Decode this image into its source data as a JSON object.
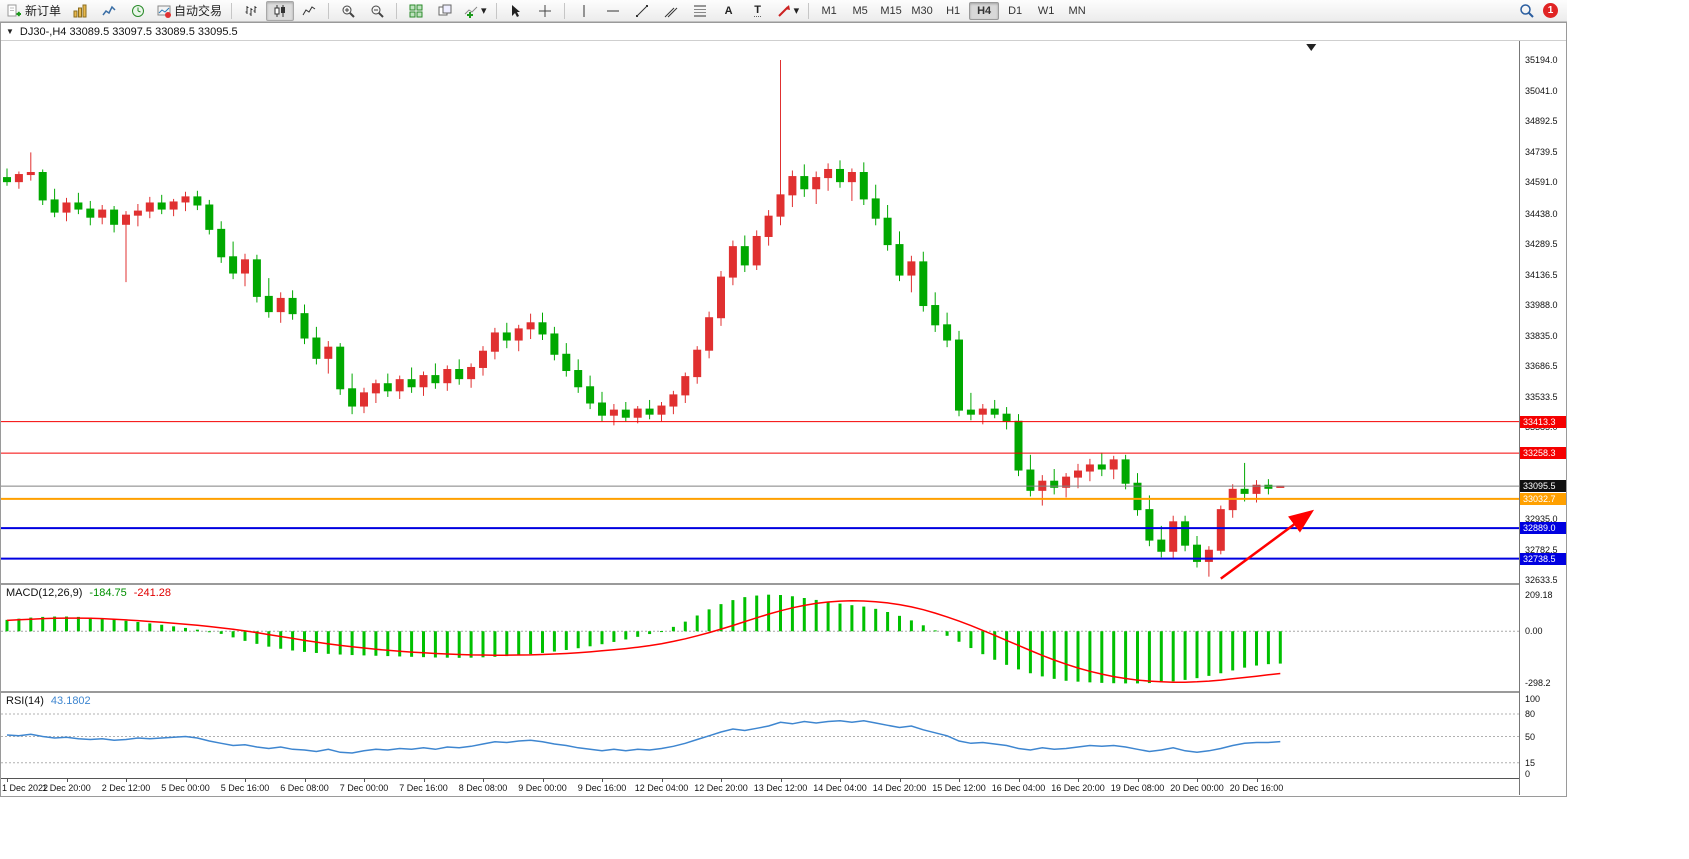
{
  "app": {
    "notification_count": "1"
  },
  "toolbar": {
    "new_order": "新订单",
    "auto_trading": "自动交易",
    "timeframes": [
      "M1",
      "M5",
      "M15",
      "M30",
      "H1",
      "H4",
      "D1",
      "W1",
      "MN"
    ],
    "active_timeframe": "H4"
  },
  "chart_window": {
    "title": "DJ30-,H4 33089.5 33097.5 33089.5 33095.5"
  },
  "colors": {
    "candle_up": "#e03030",
    "candle_down": "#00a800",
    "macd_hist": "#00c000",
    "macd_signal": "#ff0000",
    "rsi_line": "#3e86d0",
    "arrow": "#ff0000"
  },
  "chart_data": [
    {
      "type": "candlestick",
      "symbol": "DJ30-",
      "timeframe": "H4",
      "ylim": [
        32633.5,
        35194.0
      ],
      "y_ticks": [
        35194.0,
        35041.0,
        34892.5,
        34739.5,
        34591.0,
        34438.0,
        34289.5,
        34136.5,
        33988.0,
        33835.0,
        33686.5,
        33533.5,
        33385.0,
        32935.0,
        32782.5,
        32633.5
      ],
      "x_labels": [
        "1 Dec 2022",
        "1 Dec 20:00",
        "2 Dec 12:00",
        "5 Dec 00:00",
        "5 Dec 16:00",
        "6 Dec 08:00",
        "7 Dec 00:00",
        "7 Dec 16:00",
        "8 Dec 08:00",
        "9 Dec 00:00",
        "9 Dec 16:00",
        "12 Dec 04:00",
        "12 Dec 20:00",
        "13 Dec 12:00",
        "14 Dec 04:00",
        "14 Dec 20:00",
        "15 Dec 12:00",
        "16 Dec 04:00",
        "16 Dec 20:00",
        "19 Dec 08:00",
        "20 Dec 00:00",
        "20 Dec 16:00"
      ],
      "x_label_every": 5,
      "hlines": [
        {
          "price": 33413.3,
          "color": "#f50000",
          "width": 1,
          "label": "33413.3",
          "label_bg": "#f50000",
          "label_fg": "#ffffff"
        },
        {
          "price": 33258.3,
          "color": "#f50000",
          "width": 1,
          "label": "33258.3",
          "label_bg": "#f50000",
          "label_fg": "#ffffff"
        },
        {
          "price": 33095.5,
          "color": "#808080",
          "width": 1,
          "label": "33095.5",
          "label_bg": "#111111",
          "label_fg": "#ffffff"
        },
        {
          "price": 33032.7,
          "color": "#ffa000",
          "width": 2,
          "label": "33032.7",
          "label_bg": "#ffa000",
          "label_fg": "#ffffff"
        },
        {
          "price": 32889.0,
          "color": "#0000e0",
          "width": 2,
          "label": "32889.0",
          "label_bg": "#0000e0",
          "label_fg": "#ffffff"
        },
        {
          "price": 32738.5,
          "color": "#0000e0",
          "width": 2,
          "label": "32738.5",
          "label_bg": "#0000e0",
          "label_fg": "#ffffff"
        }
      ],
      "arrow": {
        "from_bar": 102,
        "from_price": 32640,
        "to_bar": 109.5,
        "to_price": 32965,
        "color": "#ff0000"
      },
      "shift_marker_bar": 109.6,
      "ohlc": [
        [
          34615,
          34660,
          34575,
          34595
        ],
        [
          34595,
          34645,
          34560,
          34630
        ],
        [
          34630,
          34739,
          34600,
          34640
        ],
        [
          34640,
          34655,
          34480,
          34505
        ],
        [
          34505,
          34560,
          34420,
          34445
        ],
        [
          34445,
          34515,
          34400,
          34490
        ],
        [
          34490,
          34540,
          34435,
          34460
        ],
        [
          34460,
          34500,
          34380,
          34420
        ],
        [
          34420,
          34480,
          34385,
          34455
        ],
        [
          34455,
          34475,
          34345,
          34385
        ],
        [
          34385,
          34450,
          34100,
          34430
        ],
        [
          34430,
          34485,
          34375,
          34450
        ],
        [
          34450,
          34520,
          34415,
          34490
        ],
        [
          34490,
          34530,
          34435,
          34460
        ],
        [
          34460,
          34510,
          34425,
          34495
        ],
        [
          34495,
          34545,
          34450,
          34520
        ],
        [
          34520,
          34550,
          34455,
          34480
        ],
        [
          34480,
          34505,
          34335,
          34360
        ],
        [
          34360,
          34400,
          34195,
          34225
        ],
        [
          34225,
          34300,
          34115,
          34145
        ],
        [
          34145,
          34240,
          34080,
          34210
        ],
        [
          34210,
          34235,
          34000,
          34030
        ],
        [
          34030,
          34120,
          33925,
          33955
        ],
        [
          33955,
          34050,
          33900,
          34020
        ],
        [
          34020,
          34060,
          33915,
          33945
        ],
        [
          33945,
          33990,
          33795,
          33825
        ],
        [
          33825,
          33880,
          33695,
          33725
        ],
        [
          33725,
          33810,
          33650,
          33780
        ],
        [
          33780,
          33800,
          33545,
          33575
        ],
        [
          33575,
          33650,
          33450,
          33490
        ],
        [
          33490,
          33580,
          33455,
          33555
        ],
        [
          33555,
          33620,
          33505,
          33600
        ],
        [
          33600,
          33650,
          33535,
          33565
        ],
        [
          33565,
          33640,
          33525,
          33620
        ],
        [
          33620,
          33680,
          33555,
          33585
        ],
        [
          33585,
          33660,
          33540,
          33640
        ],
        [
          33640,
          33700,
          33575,
          33605
        ],
        [
          33605,
          33690,
          33565,
          33670
        ],
        [
          33670,
          33720,
          33595,
          33625
        ],
        [
          33625,
          33700,
          33580,
          33680
        ],
        [
          33680,
          33785,
          33640,
          33760
        ],
        [
          33760,
          33875,
          33720,
          33850
        ],
        [
          33850,
          33900,
          33775,
          33815
        ],
        [
          33815,
          33890,
          33760,
          33870
        ],
        [
          33870,
          33945,
          33820,
          33900
        ],
        [
          33900,
          33950,
          33815,
          33845
        ],
        [
          33845,
          33880,
          33715,
          33745
        ],
        [
          33745,
          33800,
          33635,
          33665
        ],
        [
          33665,
          33720,
          33555,
          33585
        ],
        [
          33585,
          33640,
          33475,
          33505
        ],
        [
          33505,
          33560,
          33415,
          33445
        ],
        [
          33445,
          33500,
          33395,
          33470
        ],
        [
          33470,
          33510,
          33415,
          33435
        ],
        [
          33435,
          33490,
          33405,
          33475
        ],
        [
          33475,
          33520,
          33425,
          33450
        ],
        [
          33450,
          33510,
          33415,
          33490
        ],
        [
          33490,
          33565,
          33450,
          33545
        ],
        [
          33545,
          33655,
          33505,
          33635
        ],
        [
          33635,
          33785,
          33600,
          33765
        ],
        [
          33765,
          33955,
          33725,
          33925
        ],
        [
          33925,
          34155,
          33885,
          34125
        ],
        [
          34125,
          34305,
          34085,
          34275
        ],
        [
          34275,
          34330,
          34150,
          34185
        ],
        [
          34185,
          34355,
          34160,
          34325
        ],
        [
          34325,
          34455,
          34280,
          34425
        ],
        [
          34425,
          35194,
          34380,
          34530
        ],
        [
          34530,
          34650,
          34470,
          34620
        ],
        [
          34620,
          34680,
          34520,
          34560
        ],
        [
          34560,
          34645,
          34485,
          34615
        ],
        [
          34615,
          34685,
          34550,
          34655
        ],
        [
          34655,
          34700,
          34565,
          34595
        ],
        [
          34595,
          34660,
          34500,
          34640
        ],
        [
          34640,
          34690,
          34480,
          34510
        ],
        [
          34510,
          34580,
          34380,
          34415
        ],
        [
          34415,
          34480,
          34255,
          34285
        ],
        [
          34285,
          34350,
          34105,
          34135
        ],
        [
          34135,
          34230,
          34050,
          34200
        ],
        [
          34200,
          34250,
          33955,
          33985
        ],
        [
          33985,
          34050,
          33855,
          33890
        ],
        [
          33890,
          33950,
          33780,
          33815
        ],
        [
          33815,
          33860,
          33440,
          33470
        ],
        [
          33470,
          33555,
          33420,
          33450
        ],
        [
          33450,
          33500,
          33400,
          33475
        ],
        [
          33475,
          33520,
          33430,
          33450
        ],
        [
          33450,
          33485,
          33375,
          33415
        ],
        [
          33415,
          33450,
          33145,
          33175
        ],
        [
          33175,
          33250,
          33045,
          33075
        ],
        [
          33075,
          33150,
          33000,
          33120
        ],
        [
          33120,
          33180,
          33055,
          33090
        ],
        [
          33090,
          33160,
          33040,
          33140
        ],
        [
          33140,
          33205,
          33085,
          33170
        ],
        [
          33170,
          33230,
          33120,
          33200
        ],
        [
          33200,
          33260,
          33145,
          33180
        ],
        [
          33180,
          33245,
          33130,
          33225
        ],
        [
          33225,
          33250,
          33080,
          33110
        ],
        [
          33110,
          33160,
          32950,
          32980
        ],
        [
          32980,
          33050,
          32800,
          32830
        ],
        [
          32830,
          32900,
          32745,
          32775
        ],
        [
          32775,
          32950,
          32740,
          32920
        ],
        [
          32920,
          32950,
          32775,
          32805
        ],
        [
          32805,
          32850,
          32695,
          32725
        ],
        [
          32725,
          32800,
          32650,
          32780
        ],
        [
          32780,
          33000,
          32760,
          32980
        ],
        [
          32980,
          33105,
          32940,
          33080
        ],
        [
          33080,
          33210,
          33020,
          33060
        ],
        [
          33060,
          33125,
          33015,
          33100
        ],
        [
          33100,
          33130,
          33055,
          33085
        ],
        [
          33089.5,
          33097.5,
          33089.5,
          33095.5
        ]
      ]
    },
    {
      "type": "bar",
      "name": "MACD(12,26,9)",
      "value_main": "-184.75",
      "value_signal": "-241.28",
      "ylim": [
        -330,
        230
      ],
      "y_ticks": [
        {
          "v": 209.18,
          "label": "209.18"
        },
        {
          "v": 0,
          "label": "0.00"
        },
        {
          "v": -298.2,
          "label": "-298.2"
        }
      ],
      "values": [
        65,
        72,
        78,
        82,
        84,
        84,
        82,
        78,
        73,
        67,
        60,
        53,
        45,
        37,
        28,
        19,
        9,
        -3,
        -15,
        -35,
        -55,
        -72,
        -88,
        -100,
        -110,
        -118,
        -124,
        -129,
        -133,
        -136,
        -138,
        -140,
        -142,
        -144,
        -146,
        -148,
        -150,
        -151,
        -152,
        -151,
        -149,
        -146,
        -142,
        -137,
        -131,
        -124,
        -116,
        -107,
        -97,
        -86,
        -74,
        -61,
        -47,
        -32,
        -16,
        1,
        25,
        55,
        90,
        125,
        155,
        178,
        195,
        204,
        209,
        207,
        200,
        190,
        179,
        168,
        158,
        149,
        141,
        128,
        110,
        88,
        62,
        34,
        5,
        -26,
        -60,
        -96,
        -131,
        -163,
        -192,
        -218,
        -240,
        -258,
        -272,
        -283,
        -288,
        -292,
        -295,
        -297,
        -298,
        -298,
        -296,
        -292,
        -286,
        -278,
        -268,
        -255,
        -240,
        -224,
        -208,
        -196,
        -188,
        -184.75
      ],
      "signal": [
        62,
        66,
        69,
        72,
        74,
        75,
        75,
        74,
        72,
        69,
        65,
        61,
        56,
        51,
        46,
        40,
        34,
        27,
        19,
        11,
        2,
        -8,
        -19,
        -30,
        -41,
        -52,
        -62,
        -72,
        -81,
        -89,
        -96,
        -103,
        -109,
        -114,
        -119,
        -123,
        -127,
        -130,
        -133,
        -135,
        -136,
        -137,
        -137,
        -136,
        -135,
        -133,
        -130,
        -127,
        -123,
        -118,
        -112,
        -106,
        -99,
        -91,
        -82,
        -71,
        -58,
        -43,
        -26,
        -8,
        12,
        33,
        55,
        77,
        98,
        117,
        134,
        148,
        159,
        167,
        172,
        174,
        173,
        169,
        162,
        152,
        139,
        123,
        104,
        82,
        58,
        32,
        5,
        -23,
        -52,
        -81,
        -110,
        -138,
        -164,
        -188,
        -210,
        -229,
        -245,
        -259,
        -270,
        -279,
        -285,
        -289,
        -291,
        -291,
        -289,
        -285,
        -279,
        -272,
        -264,
        -257,
        -249,
        -241.28
      ]
    },
    {
      "type": "line",
      "name": "RSI(14)",
      "value": "43.1802",
      "ylim": [
        0,
        100
      ],
      "y_ticks": [
        100,
        80,
        50,
        15,
        0
      ],
      "levels": [
        80,
        50,
        15
      ],
      "values": [
        52,
        51,
        53,
        50,
        48,
        49,
        47,
        46,
        47,
        45,
        46,
        48,
        47,
        48,
        49,
        50,
        48,
        44,
        41,
        38,
        39,
        36,
        34,
        36,
        33,
        32,
        30,
        33,
        29,
        28,
        31,
        33,
        32,
        34,
        33,
        35,
        33,
        36,
        35,
        37,
        40,
        43,
        42,
        44,
        45,
        43,
        40,
        38,
        35,
        33,
        31,
        33,
        31,
        33,
        32,
        34,
        37,
        41,
        46,
        51,
        56,
        60,
        58,
        61,
        64,
        69,
        67,
        70,
        68,
        70,
        71,
        69,
        71,
        68,
        65,
        62,
        64,
        59,
        55,
        51,
        44,
        41,
        42,
        40,
        38,
        34,
        32,
        35,
        33,
        34,
        36,
        38,
        37,
        38,
        36,
        33,
        30,
        32,
        35,
        31,
        29,
        31,
        34,
        38,
        41,
        42,
        42,
        43.18
      ]
    }
  ]
}
